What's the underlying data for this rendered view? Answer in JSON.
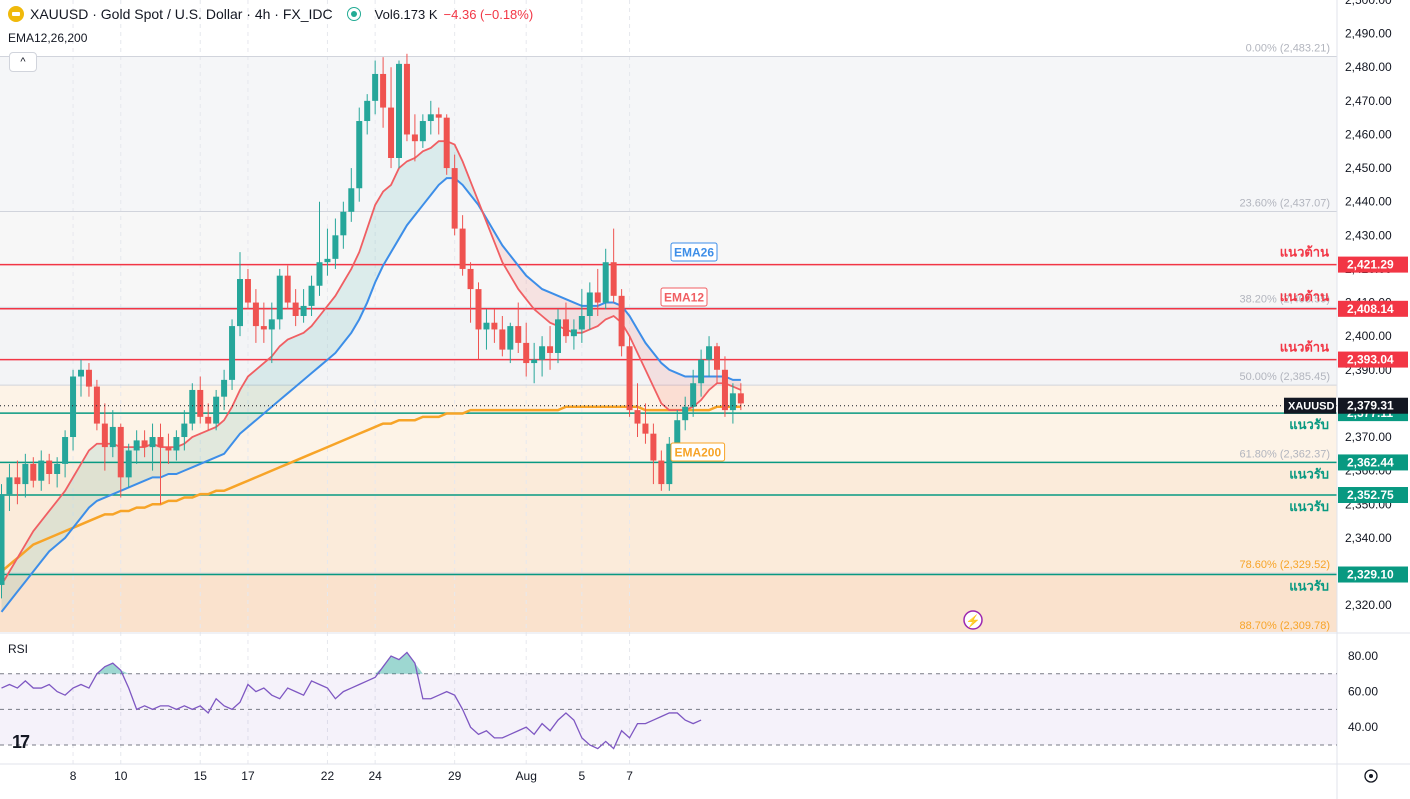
{
  "header": {
    "symbol": "XAUUSD · Gold Spot / U.S. Dollar · 4h · FX_IDC",
    "vol_label": "Vol",
    "vol_value": "6.173 K",
    "vol_change": "−4.36 (−0.18%)",
    "indicator": "EMA12,26,200",
    "collapse_glyph": "^"
  },
  "colors": {
    "up": "#26a69a",
    "down": "#ef5350",
    "ema12": "#f05f63",
    "ema26": "#3d8ee8",
    "ema200": "#f7a428",
    "resistance": "#f23645",
    "support": "#089981",
    "rsi": "#7e57c2"
  },
  "price_axis": {
    "min": 2312,
    "max": 2500,
    "ticks": [
      "2,500.00",
      "2,490.00",
      "2,480.00",
      "2,470.00",
      "2,460.00",
      "2,450.00",
      "2,440.00",
      "2,430.00",
      "2,420.00",
      "2,410.00",
      "2,400.00",
      "2,390.00",
      "2,380.00",
      "2,370.00",
      "2,360.00",
      "2,350.00",
      "2,340.00",
      "2,330.00",
      "2,320.00"
    ],
    "tick_values": [
      2500,
      2490,
      2480,
      2470,
      2460,
      2450,
      2440,
      2430,
      2420,
      2410,
      2400,
      2390,
      2380,
      2370,
      2360,
      2350,
      2340,
      2330,
      2320
    ]
  },
  "time_axis": {
    "labels": [
      "8",
      "10",
      "15",
      "17",
      "22",
      "24",
      "29",
      "Aug",
      "5",
      "7"
    ],
    "bar_index": [
      9,
      15,
      25,
      31,
      41,
      47,
      57,
      66,
      73,
      79
    ]
  },
  "fib_levels": [
    {
      "label": "0.00% (2,483.21)",
      "value": 2483.21
    },
    {
      "label": "23.60% (2,437.07)",
      "value": 2437.07
    },
    {
      "label": "38.20% (2,408.55)",
      "value": 2408.55
    },
    {
      "label": "50.00% (2,385.45)",
      "value": 2385.45
    },
    {
      "label": "61.80% (2,362.37)",
      "value": 2362.37
    },
    {
      "label": "78.60% (2,329.52)",
      "value": 2329.52
    },
    {
      "label": "88.70% (2,309.78)",
      "value": 2309.78
    }
  ],
  "resistance_lines": [
    {
      "label": "แนวต้าน",
      "value": 2421.29,
      "badge": "2,421.29"
    },
    {
      "label": "แนวต้าน",
      "value": 2408.14,
      "badge": "2,408.14"
    },
    {
      "label": "แนวต้าน",
      "value": 2393.04,
      "badge": "2,393.04"
    }
  ],
  "support_lines": [
    {
      "label": "แนวรับ",
      "value": 2377.11,
      "badge": "2,377.11"
    },
    {
      "label": "แนวรับ",
      "value": 2362.44,
      "badge": "2,362.44"
    },
    {
      "label": "แนวรับ",
      "value": 2352.75,
      "badge": "2,352.75"
    },
    {
      "label": "แนวรับ",
      "value": 2329.1,
      "badge": "2,329.10"
    }
  ],
  "current_price": {
    "symbol": "XAUUSD",
    "value": 2379.31,
    "badge": "2,379.31"
  },
  "ema_labels": {
    "ema26": "EMA26",
    "ema12": "EMA12",
    "ema200": "EMA200"
  },
  "rsi": {
    "label": "RSI",
    "ticks": [
      "80.00",
      "60.00",
      "40.00"
    ],
    "tick_values": [
      80,
      60,
      40
    ],
    "overbought": 70,
    "oversold": 30,
    "values": [
      62,
      64,
      62,
      66,
      62,
      62,
      64,
      60,
      58,
      62,
      64,
      62,
      70,
      74,
      76,
      72,
      62,
      50,
      52,
      50,
      52,
      52,
      50,
      52,
      50,
      52,
      48,
      56,
      52,
      50,
      54,
      64,
      60,
      62,
      58,
      56,
      62,
      60,
      58,
      66,
      64,
      62,
      56,
      60,
      62,
      64,
      66,
      68,
      74,
      80,
      78,
      82,
      76,
      56,
      56,
      58,
      60,
      58,
      50,
      40,
      36,
      38,
      34,
      34,
      36,
      38,
      40,
      36,
      42,
      38,
      44,
      48,
      44,
      34,
      30,
      28,
      32,
      28,
      38,
      34,
      42,
      42,
      44,
      46,
      48,
      48,
      44,
      42,
      44
    ]
  },
  "chart_data": {
    "type": "candlestick",
    "title": "XAUUSD · Gold Spot / U.S. Dollar · 4h · FX_IDC",
    "ylim": [
      2312,
      2500
    ],
    "bars": [
      [
        2326,
        2356,
        2322,
        2353
      ],
      [
        2353,
        2362,
        2348,
        2358
      ],
      [
        2358,
        2363,
        2350,
        2356
      ],
      [
        2356,
        2365,
        2352,
        2362
      ],
      [
        2362,
        2364,
        2355,
        2357
      ],
      [
        2357,
        2366,
        2354,
        2363
      ],
      [
        2363,
        2365,
        2356,
        2359
      ],
      [
        2359,
        2364,
        2355,
        2362
      ],
      [
        2362,
        2372,
        2358,
        2370
      ],
      [
        2370,
        2390,
        2366,
        2388
      ],
      [
        2388,
        2393,
        2382,
        2390
      ],
      [
        2390,
        2392,
        2382,
        2385
      ],
      [
        2385,
        2387,
        2372,
        2374
      ],
      [
        2374,
        2380,
        2360,
        2367
      ],
      [
        2367,
        2378,
        2364,
        2373
      ],
      [
        2373,
        2374,
        2352,
        2358
      ],
      [
        2358,
        2368,
        2355,
        2366
      ],
      [
        2366,
        2372,
        2362,
        2369
      ],
      [
        2369,
        2372,
        2364,
        2367
      ],
      [
        2367,
        2374,
        2360,
        2370
      ],
      [
        2370,
        2374,
        2350,
        2367
      ],
      [
        2367,
        2371,
        2362,
        2366
      ],
      [
        2366,
        2372,
        2363,
        2370
      ],
      [
        2370,
        2378,
        2366,
        2374
      ],
      [
        2374,
        2386,
        2372,
        2384
      ],
      [
        2384,
        2388,
        2374,
        2376
      ],
      [
        2376,
        2380,
        2372,
        2374
      ],
      [
        2374,
        2384,
        2372,
        2382
      ],
      [
        2382,
        2390,
        2378,
        2387
      ],
      [
        2387,
        2405,
        2384,
        2403
      ],
      [
        2403,
        2425,
        2400,
        2417
      ],
      [
        2417,
        2420,
        2408,
        2410
      ],
      [
        2410,
        2414,
        2398,
        2403
      ],
      [
        2403,
        2410,
        2398,
        2402
      ],
      [
        2402,
        2410,
        2392,
        2405
      ],
      [
        2405,
        2420,
        2402,
        2418
      ],
      [
        2418,
        2421,
        2408,
        2410
      ],
      [
        2410,
        2414,
        2403,
        2406
      ],
      [
        2406,
        2414,
        2404,
        2409
      ],
      [
        2409,
        2418,
        2406,
        2415
      ],
      [
        2415,
        2440,
        2412,
        2422
      ],
      [
        2422,
        2432,
        2418,
        2423
      ],
      [
        2423,
        2435,
        2420,
        2430
      ],
      [
        2430,
        2440,
        2426,
        2437
      ],
      [
        2437,
        2450,
        2434,
        2444
      ],
      [
        2444,
        2468,
        2440,
        2464
      ],
      [
        2464,
        2472,
        2460,
        2470
      ],
      [
        2470,
        2482,
        2466,
        2478
      ],
      [
        2478,
        2483,
        2462,
        2468
      ],
      [
        2468,
        2480,
        2450,
        2453
      ],
      [
        2453,
        2482,
        2450,
        2481
      ],
      [
        2481,
        2484,
        2458,
        2460
      ],
      [
        2460,
        2466,
        2452,
        2458
      ],
      [
        2458,
        2466,
        2456,
        2464
      ],
      [
        2464,
        2470,
        2460,
        2466
      ],
      [
        2466,
        2468,
        2460,
        2465
      ],
      [
        2465,
        2466,
        2448,
        2450
      ],
      [
        2450,
        2454,
        2430,
        2432
      ],
      [
        2432,
        2436,
        2418,
        2420
      ],
      [
        2420,
        2422,
        2404,
        2414
      ],
      [
        2414,
        2416,
        2393,
        2402
      ],
      [
        2402,
        2408,
        2396,
        2404
      ],
      [
        2404,
        2408,
        2398,
        2402
      ],
      [
        2402,
        2406,
        2394,
        2396
      ],
      [
        2396,
        2404,
        2392,
        2403
      ],
      [
        2403,
        2410,
        2395,
        2398
      ],
      [
        2398,
        2404,
        2388,
        2392
      ],
      [
        2392,
        2398,
        2386,
        2393
      ],
      [
        2393,
        2400,
        2388,
        2397
      ],
      [
        2397,
        2403,
        2390,
        2395
      ],
      [
        2395,
        2408,
        2392,
        2405
      ],
      [
        2405,
        2410,
        2398,
        2400
      ],
      [
        2400,
        2405,
        2396,
        2402
      ],
      [
        2402,
        2414,
        2398,
        2406
      ],
      [
        2406,
        2416,
        2402,
        2413
      ],
      [
        2413,
        2420,
        2406,
        2410
      ],
      [
        2410,
        2426,
        2408,
        2422
      ],
      [
        2422,
        2432,
        2410,
        2412
      ],
      [
        2412,
        2414,
        2394,
        2397
      ],
      [
        2397,
        2400,
        2376,
        2378
      ],
      [
        2378,
        2386,
        2370,
        2374
      ],
      [
        2374,
        2380,
        2368,
        2371
      ],
      [
        2371,
        2374,
        2356,
        2363
      ],
      [
        2363,
        2366,
        2354,
        2356
      ],
      [
        2356,
        2370,
        2354,
        2368
      ],
      [
        2368,
        2378,
        2366,
        2375
      ],
      [
        2375,
        2382,
        2372,
        2379
      ],
      [
        2379,
        2390,
        2376,
        2386
      ],
      [
        2386,
        2396,
        2382,
        2393
      ],
      [
        2393,
        2400,
        2388,
        2397
      ],
      [
        2397,
        2398,
        2386,
        2390
      ],
      [
        2390,
        2394,
        2376,
        2378
      ],
      [
        2378,
        2386,
        2374,
        2383
      ],
      [
        2383,
        2386,
        2378,
        2380
      ]
    ],
    "ema12": [
      2326,
      2330,
      2334,
      2338,
      2342,
      2345,
      2348,
      2351,
      2354,
      2358,
      2362,
      2366,
      2368,
      2368,
      2368,
      2367,
      2367,
      2367,
      2367,
      2368,
      2367,
      2367,
      2367,
      2368,
      2370,
      2371,
      2372,
      2373,
      2375,
      2379,
      2384,
      2388,
      2390,
      2392,
      2394,
      2397,
      2399,
      2400,
      2401,
      2403,
      2406,
      2409,
      2412,
      2416,
      2420,
      2425,
      2432,
      2439,
      2443,
      2445,
      2450,
      2452,
      2453,
      2455,
      2456,
      2458,
      2458,
      2457,
      2452,
      2446,
      2440,
      2434,
      2428,
      2422,
      2418,
      2414,
      2411,
      2408,
      2406,
      2404,
      2403,
      2402,
      2401,
      2401,
      2402,
      2403,
      2405,
      2406,
      2404,
      2400,
      2395,
      2390,
      2385,
      2380,
      2378,
      2378,
      2378,
      2379,
      2381,
      2384,
      2386,
      2386,
      2385,
      2384
    ],
    "ema26": [
      2318,
      2321,
      2324,
      2327,
      2330,
      2333,
      2336,
      2338,
      2340,
      2343,
      2346,
      2349,
      2351,
      2352,
      2353,
      2354,
      2355,
      2356,
      2357,
      2358,
      2358,
      2359,
      2359,
      2360,
      2361,
      2362,
      2363,
      2364,
      2365,
      2368,
      2371,
      2373,
      2375,
      2377,
      2379,
      2381,
      2383,
      2385,
      2387,
      2389,
      2391,
      2393,
      2395,
      2398,
      2401,
      2405,
      2410,
      2416,
      2421,
      2425,
      2429,
      2433,
      2436,
      2439,
      2442,
      2445,
      2447,
      2447,
      2445,
      2442,
      2439,
      2435,
      2431,
      2427,
      2424,
      2421,
      2418,
      2416,
      2414,
      2413,
      2412,
      2411,
      2410,
      2409,
      2409,
      2409,
      2410,
      2410,
      2409,
      2406,
      2402,
      2398,
      2395,
      2392,
      2390,
      2389,
      2388,
      2388,
      2388,
      2388,
      2388,
      2388,
      2387,
      2387
    ],
    "ema200": [
      2330,
      2332,
      2334,
      2336,
      2338,
      2339,
      2340,
      2341,
      2342,
      2343,
      2344,
      2345,
      2346,
      2347,
      2347,
      2348,
      2348,
      2349,
      2349,
      2350,
      2350,
      2351,
      2351,
      2352,
      2352,
      2353,
      2353,
      2354,
      2354,
      2355,
      2356,
      2357,
      2358,
      2359,
      2360,
      2361,
      2362,
      2363,
      2364,
      2365,
      2366,
      2367,
      2368,
      2369,
      2370,
      2371,
      2372,
      2373,
      2374,
      2374,
      2375,
      2375,
      2375,
      2376,
      2376,
      2376,
      2377,
      2377,
      2377,
      2378,
      2378,
      2378,
      2378,
      2378,
      2378,
      2378,
      2378,
      2378,
      2378,
      2378,
      2378,
      2379,
      2379,
      2379,
      2379,
      2379,
      2379,
      2379,
      2379,
      2379,
      2379,
      2378,
      2378,
      2378,
      2378,
      2378,
      2378,
      2378,
      2378,
      2378,
      2379,
      2379,
      2379,
      2379
    ]
  }
}
